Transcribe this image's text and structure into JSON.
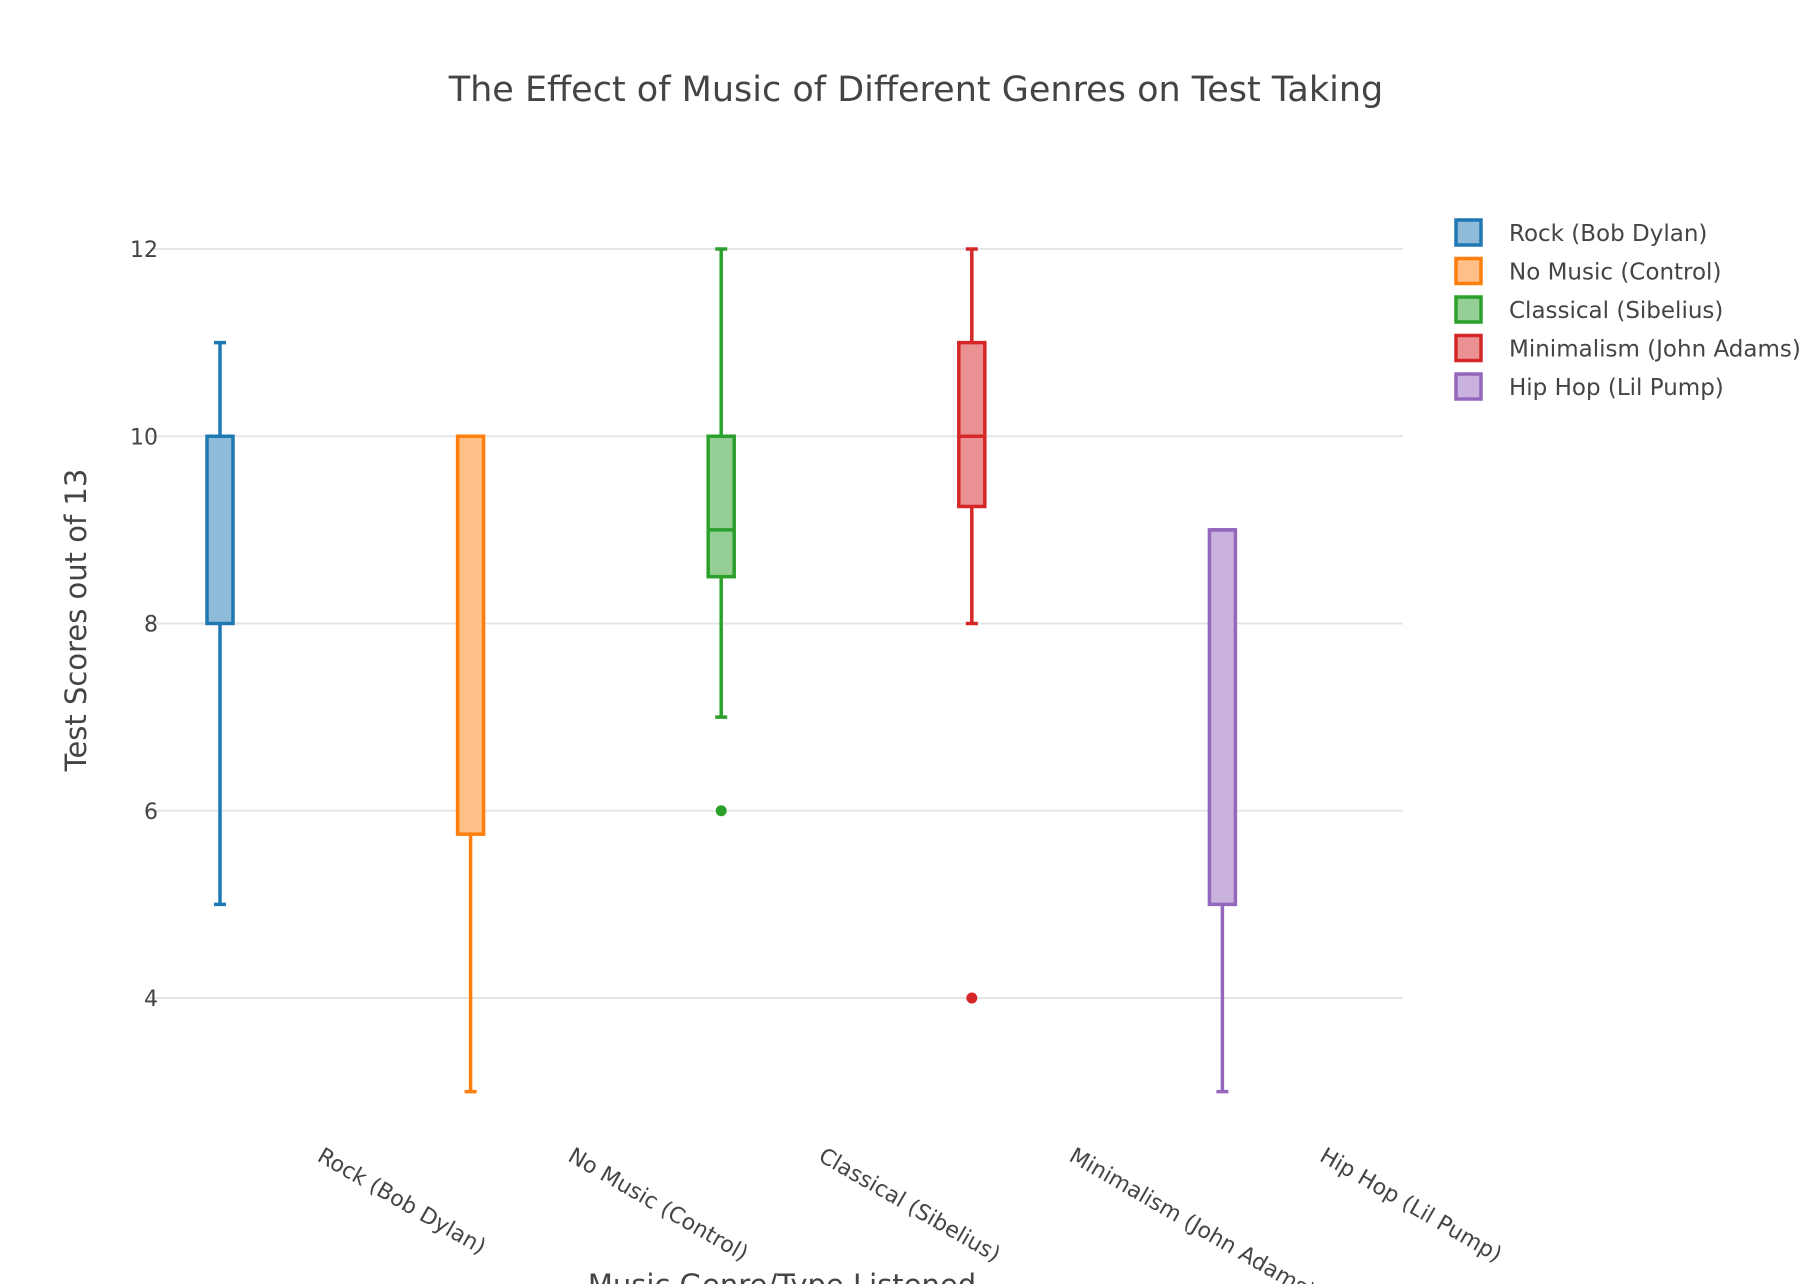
{
  "chart_data": {
    "type": "box",
    "title": "The Effect of Music of Different Genres on Test Taking",
    "xlabel": "Music Genre/Type Listened",
    "ylabel": "Test Scores out of 13",
    "ylim": [
      2.5,
      12.6
    ],
    "yticks": [
      4,
      6,
      8,
      10,
      12
    ],
    "grid": true,
    "legend_position": "top-right",
    "categories": [
      "Rock (Bob Dylan)",
      "No Music (Control)",
      "Classical (Sibelius)",
      "Minimalism (John Adams)",
      "Hip Hop (Lil Pump)"
    ],
    "series": [
      {
        "name": "Rock (Bob Dylan)",
        "color": "#1f77b4",
        "fill": "#8fbbd9",
        "min": 5,
        "q1": 8,
        "median": 10,
        "q3": 10,
        "max": 11,
        "outliers": []
      },
      {
        "name": "No Music (Control)",
        "color": "#ff7f0e",
        "fill": "#ffbf86",
        "min": 3,
        "q1": 5.75,
        "median": 10,
        "q3": 10,
        "max": 10,
        "outliers": []
      },
      {
        "name": "Classical (Sibelius)",
        "color": "#2ca02c",
        "fill": "#95cf95",
        "min": 7,
        "q1": 8.5,
        "median": 9,
        "q3": 10,
        "max": 12,
        "outliers": [
          6
        ]
      },
      {
        "name": "Minimalism (John Adams)",
        "color": "#d62728",
        "fill": "#ea9293",
        "min": 8,
        "q1": 9.25,
        "median": 10,
        "q3": 11,
        "max": 12,
        "outliers": [
          4
        ]
      },
      {
        "name": "Hip Hop (Lil Pump)",
        "color": "#9467bd",
        "fill": "#c9b3de",
        "min": 3,
        "q1": 5,
        "median": 9,
        "q3": 9,
        "max": 9,
        "outliers": []
      }
    ]
  }
}
